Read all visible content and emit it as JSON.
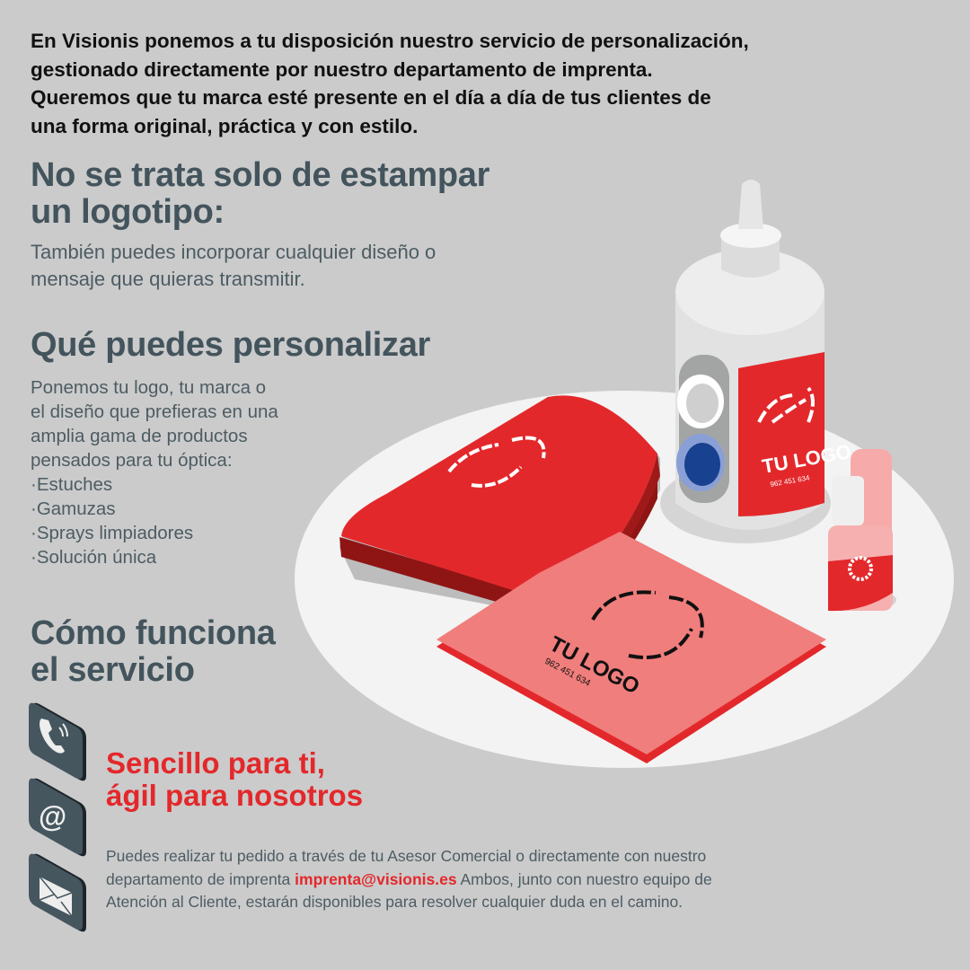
{
  "intro": {
    "lines": [
      "En Visionis ponemos a tu disposición nuestro servicio de personalización,",
      "gestionado directamente por nuestro departamento de imprenta.",
      "Queremos que tu marca esté presente en el día a día de tus clientes de",
      "una forma original, práctica y con estilo."
    ]
  },
  "logo_section": {
    "title_lines": [
      "No se trata solo de estampar",
      "un logotipo:"
    ],
    "text_lines": [
      "También puedes incorporar cualquier diseño o",
      "mensaje que quieras transmitir."
    ]
  },
  "custom_section": {
    "title": "Qué puedes personalizar",
    "text_lines": [
      "Ponemos tu logo, tu marca o",
      "el diseño que prefieras en una",
      "amplia gama de productos",
      "pensados para tu óptica:"
    ],
    "items": [
      "·Estuches",
      "·Gamuzas",
      "·Sprays limpiadores",
      "·Solución única"
    ]
  },
  "how_section": {
    "title_lines": [
      "Cómo funciona",
      "el servicio"
    ],
    "slogan_lines": [
      "Sencillo para ti,",
      "ágil para nosotros"
    ],
    "text_part1": "Puedes realizar tu pedido a través de tu  Asesor Comercial o directamente con nuestro departamento de imprenta ",
    "email": "imprenta@visionis.es",
    "text_part2": "  Ambos, junto con nuestro equipo de Atención al Cliente, estarán disponibles  para resolver cualquier duda en el camino.",
    "icons": [
      "phone-icon",
      "at-sign-icon",
      "envelope-icon"
    ]
  },
  "illustration": {
    "logo_text": "TU LOGO",
    "logo_phone": "962 451 634"
  },
  "colors": {
    "background": "#cbcbcb",
    "heading": "#43545c",
    "accent_red": "#e3282b",
    "cloth_pink": "#f07e7c",
    "icon_tile": "#45565f"
  }
}
